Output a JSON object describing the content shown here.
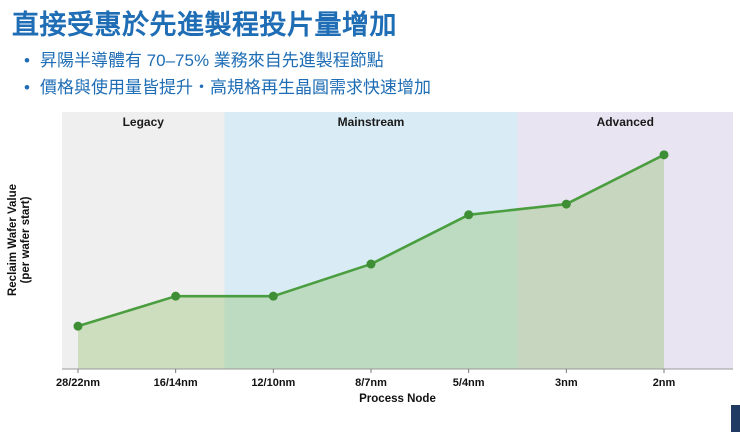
{
  "slide": {
    "title": "直接受惠於先進製程投片量增加",
    "bullets": [
      "昇陽半導體有 70–75% 業務來自先進製程節點",
      "價格與使用量皆提升‧高規格再生晶圓需求快速增加"
    ],
    "accent_color": "#1e6db5",
    "corner_color": "#203a63"
  },
  "chart_data": {
    "type": "area",
    "x": [
      "28/22nm",
      "16/14nm",
      "12/10nm",
      "8/7nm",
      "5/4nm",
      "3nm",
      "2nm"
    ],
    "values": [
      20,
      34,
      34,
      49,
      72,
      77,
      100
    ],
    "ylim": [
      0,
      120
    ],
    "xlabel": "Process Node",
    "ylabel_lines": [
      "Reclaim Wafer Value",
      "(per wafer start)"
    ],
    "zones": [
      {
        "label": "Legacy",
        "from": -2,
        "to": 1.5,
        "color": "#efefef"
      },
      {
        "label": "Mainstream",
        "from": 1.5,
        "to": 4.5,
        "color": "#d9ebf4"
      },
      {
        "label": "Advanced",
        "from": 4.5,
        "to": 9,
        "color": "#e9e4f1"
      }
    ],
    "line_color": "#4a9e3f",
    "marker_color": "#3e8e35",
    "fill_color": "rgba(122,182,72,0.30)",
    "grid": false,
    "legend": "none"
  }
}
